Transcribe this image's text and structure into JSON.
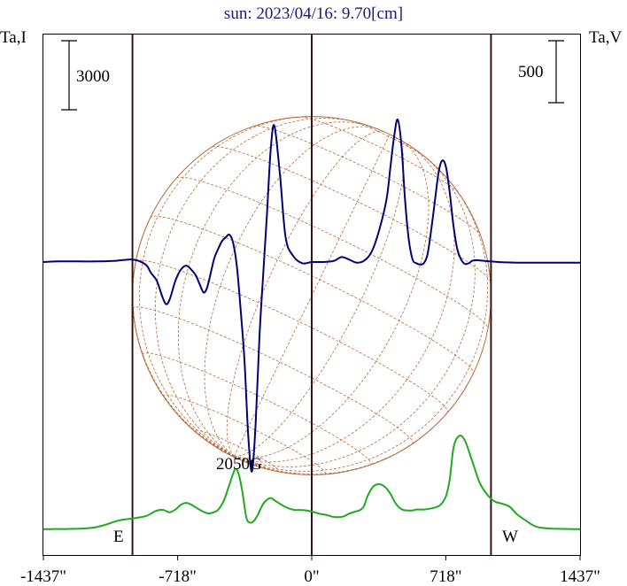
{
  "chart_data": {
    "type": "line",
    "title": "sun: 2023/04/16: 9.70[cm]",
    "left_axis_label": "Ta,I",
    "right_axis_label": "Ta,V",
    "left_scale_label": "3000",
    "right_scale_label": "500",
    "x_ticks": [
      "-1437\"",
      "-718\"",
      "0\"",
      "718\"",
      "1437\""
    ],
    "x_tick_values": [
      -1437,
      -718,
      0,
      718,
      1437
    ],
    "xlim": [
      -1437,
      1437
    ],
    "limb_markers": [
      -960,
      0,
      960
    ],
    "east_label": "E",
    "west_label": "W",
    "annotation": "2050G",
    "annotation_at": -360,
    "solar_radius": 960,
    "grid": false,
    "colors": {
      "intensity": "#1faa1f",
      "polarization": "#00007a",
      "disk": "#b86a3a",
      "limb_lines": "#3a1212",
      "title": "#1a1a7a"
    },
    "series": [
      {
        "name": "Ta,I",
        "color": "#1faa1f",
        "x": [
          -1437,
          -1380,
          -1320,
          -1260,
          -1200,
          -1150,
          -1100,
          -1060,
          -1030,
          -1000,
          -960,
          -920,
          -880,
          -840,
          -810,
          -790,
          -760,
          -730,
          -700,
          -670,
          -640,
          -600,
          -560,
          -530,
          -500,
          -470,
          -440,
          -410,
          -390,
          -370,
          -350,
          -330,
          -310,
          -290,
          -270,
          -250,
          -220,
          -200,
          -180,
          -150,
          -120,
          -90,
          -60,
          -30,
          0,
          40,
          80,
          110,
          140,
          170,
          200,
          230,
          260,
          280,
          300,
          330,
          360,
          390,
          420,
          450,
          480,
          510,
          540,
          560,
          600,
          640,
          680,
          700,
          720,
          740,
          760,
          790,
          820,
          860,
          900,
          940,
          980,
          1020,
          1060,
          1100,
          1150,
          1200,
          1260,
          1320,
          1380,
          1437
        ],
        "y": [
          50,
          52,
          55,
          62,
          85,
          140,
          250,
          360,
          430,
          470,
          510,
          560,
          640,
          820,
          890,
          870,
          780,
          900,
          1110,
          1190,
          1090,
          890,
          740,
          760,
          900,
          1300,
          2000,
          2650,
          2400,
          1600,
          550,
          330,
          400,
          650,
          1000,
          1250,
          1400,
          1300,
          1200,
          1050,
          940,
          880,
          880,
          860,
          810,
          720,
          660,
          590,
          570,
          600,
          720,
          800,
          880,
          1050,
          1500,
          1900,
          2000,
          1900,
          1600,
          1160,
          920,
          860,
          860,
          900,
          900,
          950,
          1050,
          1200,
          1500,
          2250,
          3620,
          4100,
          3900,
          3000,
          2050,
          1550,
          1250,
          1150,
          1020,
          690,
          400,
          160,
          80,
          60,
          52,
          50
        ]
      },
      {
        "name": "Ta,V",
        "color": "#00007a",
        "x": [
          -1437,
          -1350,
          -1250,
          -1150,
          -1050,
          -980,
          -940,
          -920,
          -900,
          -880,
          -860,
          -830,
          -800,
          -780,
          -760,
          -730,
          -700,
          -670,
          -640,
          -620,
          -600,
          -580,
          -565,
          -550,
          -535,
          -520,
          -500,
          -480,
          -460,
          -440,
          -420,
          -400,
          -380,
          -360,
          -340,
          -320,
          -300,
          -280,
          -260,
          -240,
          -220,
          -200,
          -170,
          -140,
          -100,
          -50,
          0,
          60,
          120,
          160,
          200,
          240,
          280,
          320,
          360,
          400,
          420,
          440,
          460,
          480,
          500,
          520,
          540,
          560,
          580,
          600,
          620,
          640,
          660,
          680,
          700,
          720,
          740,
          760,
          780,
          800,
          820,
          840,
          860,
          880,
          920,
          960,
          1000,
          1100,
          1200,
          1300,
          1437
        ],
        "y": [
          0,
          5,
          5,
          5,
          10,
          20,
          15,
          5,
          -10,
          -35,
          -90,
          -150,
          -280,
          -340,
          -300,
          -150,
          -60,
          -30,
          -70,
          -110,
          -180,
          -245,
          -225,
          -150,
          -50,
          40,
          110,
          170,
          200,
          220,
          150,
          -50,
          -400,
          -800,
          -1400,
          -1690,
          -1300,
          -600,
          -100,
          380,
          900,
          1100,
          700,
          200,
          50,
          -10,
          0,
          0,
          10,
          40,
          20,
          -5,
          10,
          80,
          250,
          500,
          750,
          1000,
          1150,
          950,
          500,
          180,
          20,
          -10,
          -20,
          -10,
          60,
          260,
          500,
          730,
          820,
          760,
          550,
          280,
          100,
          20,
          -15,
          -10,
          10,
          15,
          10,
          5,
          0,
          -5,
          -5,
          -5,
          -5
        ]
      }
    ]
  }
}
